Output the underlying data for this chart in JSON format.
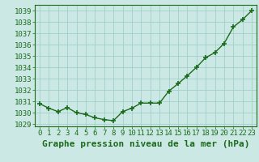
{
  "x": [
    0,
    1,
    2,
    3,
    4,
    5,
    6,
    7,
    8,
    9,
    10,
    11,
    12,
    13,
    14,
    15,
    16,
    17,
    18,
    19,
    20,
    21,
    22,
    23
  ],
  "y": [
    1030.8,
    1030.4,
    1030.1,
    1030.45,
    1030.0,
    1029.85,
    1029.55,
    1029.4,
    1029.3,
    1030.1,
    1030.4,
    1030.85,
    1030.85,
    1030.85,
    1031.9,
    1032.55,
    1033.25,
    1034.0,
    1034.85,
    1035.3,
    1036.1,
    1037.55,
    1038.2,
    1039.0
  ],
  "ylim": [
    1028.8,
    1039.5
  ],
  "xlim": [
    -0.5,
    23.5
  ],
  "yticks": [
    1029,
    1030,
    1031,
    1032,
    1033,
    1034,
    1035,
    1036,
    1037,
    1038,
    1039
  ],
  "xticks": [
    0,
    1,
    2,
    3,
    4,
    5,
    6,
    7,
    8,
    9,
    10,
    11,
    12,
    13,
    14,
    15,
    16,
    17,
    18,
    19,
    20,
    21,
    22,
    23
  ],
  "line_color": "#1a6b1a",
  "marker_color": "#1a6b1a",
  "bg_plot": "#cce8e4",
  "bg_fig": "#cce8e4",
  "grid_color": "#99ccc6",
  "xlabel": "Graphe pression niveau de la mer (hPa)",
  "title_color": "#1a6b1a",
  "tick_color": "#1a6b1a",
  "xlabel_fontsize": 8,
  "tick_fontsize": 6.5,
  "line_width": 1.0,
  "marker_size": 4
}
